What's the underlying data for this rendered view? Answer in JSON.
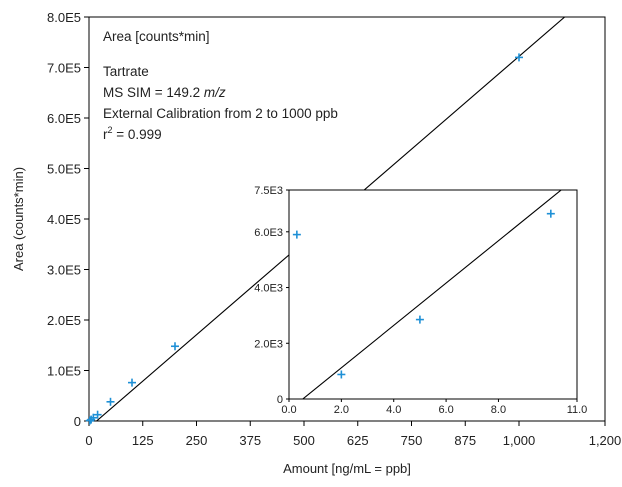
{
  "colors": {
    "marker": "#1e90d6",
    "line": "#000000",
    "axis": "#000000",
    "background": "#ffffff"
  },
  "chart_data": [
    {
      "type": "scatter",
      "title": "",
      "xlabel": "Amount [ng/mL = ppb]",
      "ylabel": "Area (counts*min)",
      "xlim": [
        0,
        1200
      ],
      "ylim": [
        0,
        800000
      ],
      "x_ticks": [
        0,
        125,
        250,
        375,
        500,
        625,
        750,
        875,
        1000,
        1200
      ],
      "x_tick_labels": [
        "0",
        "125",
        "250",
        "375",
        "500",
        "625",
        "750",
        "875",
        "1,000",
        "1,200"
      ],
      "y_ticks": [
        0,
        100000,
        200000,
        300000,
        400000,
        500000,
        600000,
        700000,
        800000
      ],
      "y_tick_labels": [
        "0",
        "1.0E5",
        "2.0E5",
        "3.0E5",
        "4.0E5",
        "5.0E5",
        "6.0E5",
        "7.0E5",
        "8.0E5"
      ],
      "grid": false,
      "annotations": {
        "area_label": "Area  [counts*min]",
        "analyte": "Tartrate",
        "ms_prefix": "MS SIM = 149.2 ",
        "ms_unit": "m/z",
        "calibration": "External Calibration from 2 to 1000 ppb",
        "r_prefix": "r",
        "r_sup": "2",
        "r_value": " = 0.999"
      },
      "series": [
        {
          "points": [
            [
              2,
              900
            ],
            [
              5,
              2800
            ],
            [
              10,
              6500
            ],
            [
              20,
              12500
            ],
            [
              50,
              38000
            ],
            [
              100,
              76000
            ],
            [
              200,
              148000
            ],
            [
              1000,
              720000
            ]
          ]
        }
      ],
      "fit_line": {
        "slope": 735,
        "intercept": -13000
      }
    },
    {
      "type": "scatter",
      "title": "",
      "xlim": [
        0,
        11
      ],
      "ylim": [
        0,
        7500
      ],
      "x_ticks": [
        0,
        2,
        4,
        6,
        8,
        11
      ],
      "x_tick_labels": [
        "0.0",
        "2.0",
        "4.0",
        "6.0",
        "8.0",
        "11.0"
      ],
      "y_ticks": [
        0,
        2000,
        4000,
        6000,
        7500
      ],
      "y_tick_labels": [
        "0",
        "2.0E3",
        "4.0E3",
        "6.0E3",
        "7.5E3"
      ],
      "grid": false,
      "series": [
        {
          "points": [
            [
              0.3,
              5900
            ],
            [
              2.0,
              880
            ],
            [
              5.0,
              2850
            ],
            [
              10.0,
              6650
            ]
          ]
        }
      ],
      "fit_line": {
        "slope": 760,
        "intercept": -400
      }
    }
  ]
}
